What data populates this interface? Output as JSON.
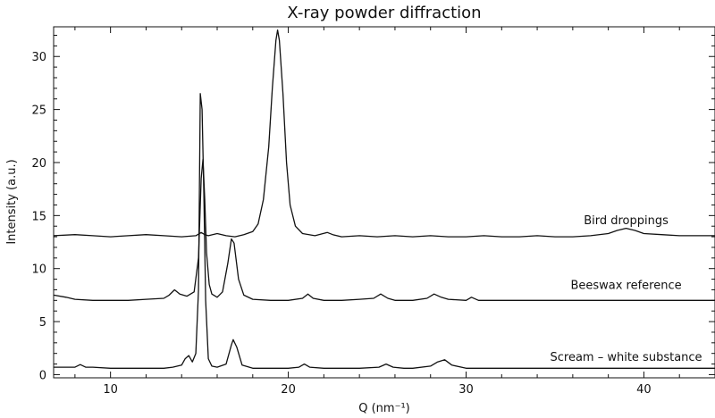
{
  "chart_data": {
    "type": "line",
    "title": "X-ray powder diffraction",
    "xlabel": "Q (nm⁻¹)",
    "ylabel": "Intensity (a.u.)",
    "xlim": [
      6.8,
      44
    ],
    "ylim": [
      -0.3,
      32.8
    ],
    "xticks": [
      "10",
      "20",
      "30",
      "40"
    ],
    "yticks": [
      "0",
      "5",
      "10",
      "15",
      "20",
      "25",
      "30"
    ],
    "grid": false,
    "legend": "labels on curves",
    "color": "#111111",
    "series": [
      {
        "name": "Bird droppings",
        "label_position": [
          39.0,
          14.2
        ],
        "x": [
          6.8,
          8,
          9,
          10,
          11,
          12,
          13,
          14,
          14.8,
          15.1,
          15.3,
          15.5,
          16,
          16.5,
          17,
          17.5,
          18,
          18.3,
          18.6,
          18.9,
          19.1,
          19.3,
          19.4,
          19.5,
          19.7,
          19.9,
          20.1,
          20.4,
          20.8,
          21.5,
          22.2,
          22.5,
          23,
          24,
          25,
          26,
          27,
          28,
          29,
          30,
          31,
          32,
          33,
          34,
          35,
          36,
          37,
          38,
          38.5,
          39,
          39.5,
          40,
          41,
          42,
          43,
          44
        ],
        "values": [
          13.1,
          13.2,
          13.1,
          13.0,
          13.1,
          13.2,
          13.1,
          13.0,
          13.1,
          13.4,
          13.2,
          13.1,
          13.3,
          13.1,
          13.0,
          13.2,
          13.5,
          14.2,
          16.5,
          21.5,
          27.0,
          31.5,
          32.5,
          31.5,
          26.5,
          20.0,
          16.0,
          14.0,
          13.3,
          13.1,
          13.4,
          13.2,
          13.0,
          13.1,
          13.0,
          13.1,
          13.0,
          13.1,
          13.0,
          13.0,
          13.1,
          13.0,
          13.0,
          13.1,
          13.0,
          13.0,
          13.1,
          13.3,
          13.6,
          13.8,
          13.6,
          13.3,
          13.2,
          13.1,
          13.1,
          13.1
        ]
      },
      {
        "name": "Beeswax reference",
        "label_position": [
          39.0,
          8.1
        ],
        "x": [
          6.8,
          7.5,
          8,
          9,
          10,
          11,
          12,
          13,
          13.3,
          13.6,
          13.9,
          14.3,
          14.7,
          14.95,
          15.1,
          15.2,
          15.3,
          15.4,
          15.55,
          15.7,
          16,
          16.3,
          16.6,
          16.8,
          16.95,
          17.2,
          17.5,
          18,
          19,
          20,
          20.8,
          21.1,
          21.4,
          22,
          23,
          24,
          24.8,
          25.2,
          25.6,
          26,
          27,
          27.8,
          28.2,
          28.6,
          29,
          30,
          30.3,
          30.7,
          31,
          32,
          34,
          36,
          38,
          40,
          42,
          44
        ],
        "values": [
          7.5,
          7.3,
          7.1,
          7.0,
          7.0,
          7.0,
          7.1,
          7.2,
          7.5,
          8.0,
          7.6,
          7.4,
          7.8,
          11.0,
          18.5,
          20.3,
          16.5,
          11.5,
          8.5,
          7.6,
          7.3,
          7.8,
          10.5,
          12.8,
          12.4,
          9.0,
          7.5,
          7.1,
          7.0,
          7.0,
          7.2,
          7.6,
          7.2,
          7.0,
          7.0,
          7.1,
          7.2,
          7.6,
          7.2,
          7.0,
          7.0,
          7.2,
          7.6,
          7.3,
          7.1,
          7.0,
          7.3,
          7.0,
          7.0,
          7.0,
          7.0,
          7.0,
          7.0,
          7.0,
          7.0,
          7.0
        ]
      },
      {
        "name": "Scream – white substance",
        "label_position": [
          39.0,
          1.3
        ],
        "x": [
          6.8,
          8,
          8.3,
          8.6,
          9,
          10,
          11,
          12,
          13,
          13.5,
          14,
          14.2,
          14.4,
          14.6,
          14.8,
          14.95,
          15.05,
          15.15,
          15.25,
          15.35,
          15.5,
          15.7,
          16,
          16.5,
          16.8,
          16.9,
          17.1,
          17.4,
          18,
          19,
          20,
          20.6,
          20.9,
          21.2,
          22,
          23,
          24,
          25.1,
          25.5,
          25.9,
          26.5,
          27,
          28,
          28.4,
          28.8,
          29.2,
          30,
          32,
          34,
          36,
          38,
          40,
          42,
          44
        ],
        "values": [
          0.7,
          0.7,
          0.95,
          0.7,
          0.7,
          0.6,
          0.6,
          0.6,
          0.6,
          0.7,
          0.9,
          1.5,
          1.8,
          1.2,
          2.0,
          8.0,
          26.5,
          25.0,
          17.0,
          7.0,
          1.5,
          0.8,
          0.7,
          1.0,
          2.8,
          3.3,
          2.6,
          0.9,
          0.6,
          0.6,
          0.6,
          0.7,
          1.0,
          0.7,
          0.6,
          0.6,
          0.6,
          0.7,
          1.0,
          0.7,
          0.6,
          0.6,
          0.8,
          1.2,
          1.4,
          0.9,
          0.6,
          0.6,
          0.6,
          0.6,
          0.6,
          0.6,
          0.6,
          0.6
        ]
      }
    ]
  }
}
